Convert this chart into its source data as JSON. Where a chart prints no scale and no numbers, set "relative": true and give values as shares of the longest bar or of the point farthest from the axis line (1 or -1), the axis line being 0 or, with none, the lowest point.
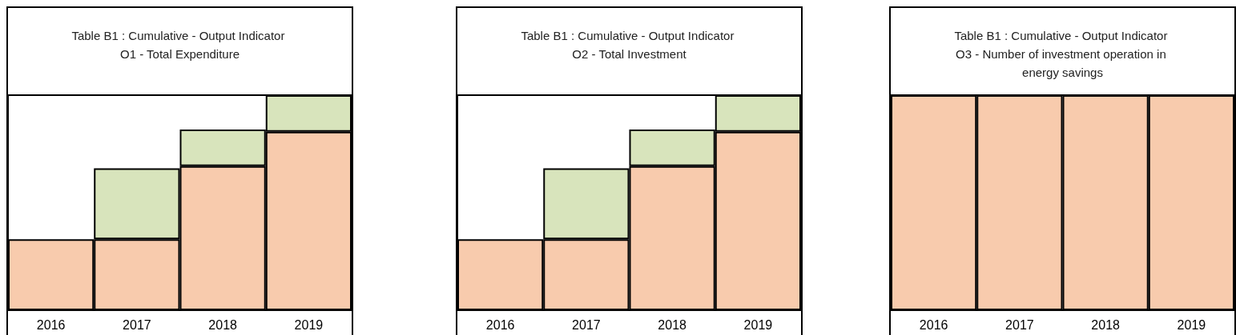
{
  "chart_data": [
    {
      "type": "bar",
      "title": "Table B1 : Cumulative - Output Indicator O1 - Total Expenditure",
      "categories": [
        "2016",
        "2017",
        "2018",
        "2019"
      ],
      "stacked": true,
      "relative": true,
      "grid": false,
      "series": [
        {
          "color": "#f8cbad",
          "values": [
            0.33,
            0.33,
            0.67,
            0.83
          ]
        },
        {
          "color": "#d8e4bc",
          "values": [
            0,
            0.33,
            0.17,
            0.17
          ]
        }
      ]
    },
    {
      "type": "bar",
      "title": "Table B1 : Cumulative - Output Indicator O2 - Total Investment",
      "categories": [
        "2016",
        "2017",
        "2018",
        "2019"
      ],
      "stacked": true,
      "relative": true,
      "grid": false,
      "series": [
        {
          "color": "#f8cbad",
          "values": [
            0.33,
            0.33,
            0.67,
            0.83
          ]
        },
        {
          "color": "#d8e4bc",
          "values": [
            0,
            0.33,
            0.17,
            0.17
          ]
        }
      ]
    },
    {
      "type": "bar",
      "title": "Table B1 : Cumulative - Output Indicator O3 - Number of investment operation in energy savings",
      "categories": [
        "2016",
        "2017",
        "2018",
        "2019"
      ],
      "stacked": true,
      "relative": true,
      "grid": false,
      "series": [
        {
          "color": "#f8cbad",
          "values": [
            1,
            1,
            1,
            1
          ]
        }
      ]
    }
  ]
}
